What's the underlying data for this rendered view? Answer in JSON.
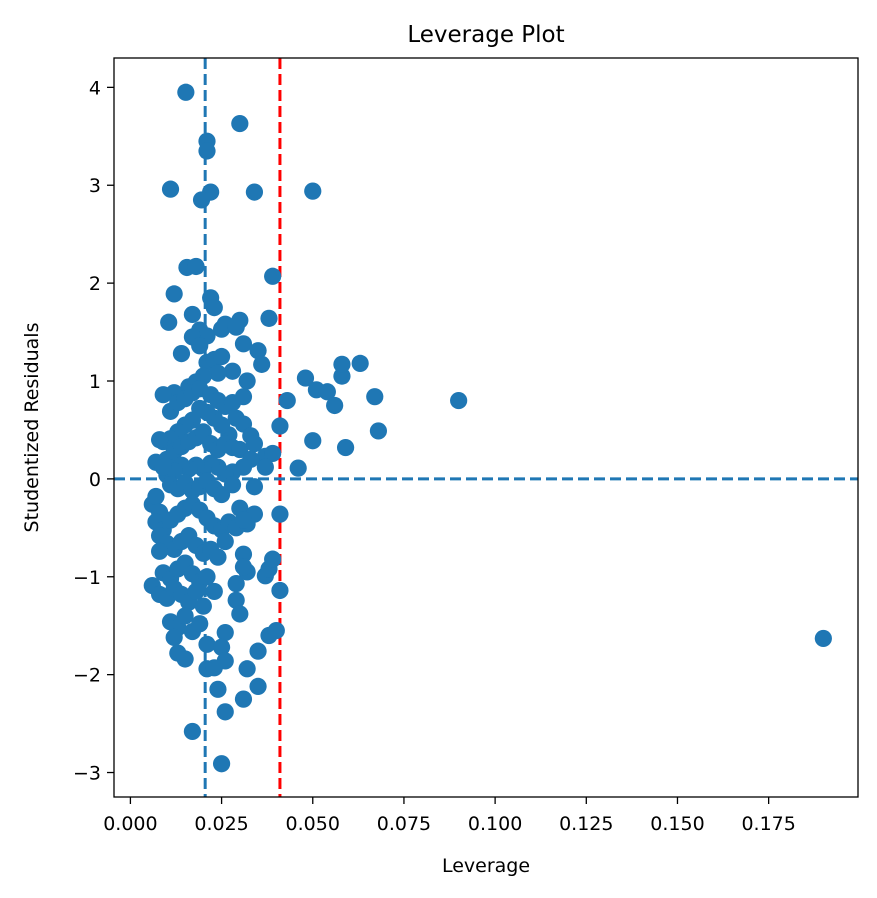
{
  "chart_data": {
    "type": "scatter",
    "title": "Leverage Plot",
    "xlabel": "Leverage",
    "ylabel": "Studentized Residuals",
    "xlim": [
      -0.0045,
      0.1995
    ],
    "ylim": [
      -3.25,
      4.3
    ],
    "xticks": [
      0.0,
      0.025,
      0.05,
      0.075,
      0.1,
      0.125,
      0.15,
      0.175
    ],
    "xtick_labels": [
      "0.000",
      "0.025",
      "0.050",
      "0.075",
      "0.100",
      "0.125",
      "0.150",
      "0.175"
    ],
    "yticks": [
      -3,
      -2,
      -1,
      0,
      1,
      2,
      3,
      4
    ],
    "ytick_labels": [
      "−3",
      "−2",
      "−1",
      "0",
      "1",
      "2",
      "3",
      "4"
    ],
    "point_color": "#1f77b4",
    "reference_lines": [
      {
        "orientation": "vertical",
        "value": 0.0205,
        "color": "#1f77b4",
        "style": "dashed"
      },
      {
        "orientation": "vertical",
        "value": 0.041,
        "color": "#ff0000",
        "style": "dashed"
      },
      {
        "orientation": "horizontal",
        "value": 0,
        "color": "#1f77b4",
        "style": "dashed"
      }
    ],
    "points": [
      [
        0.0152,
        3.95
      ],
      [
        0.03,
        3.63
      ],
      [
        0.021,
        3.45
      ],
      [
        0.021,
        3.35
      ],
      [
        0.011,
        2.96
      ],
      [
        0.022,
        2.93
      ],
      [
        0.034,
        2.93
      ],
      [
        0.05,
        2.94
      ],
      [
        0.0195,
        2.85
      ],
      [
        0.0155,
        2.16
      ],
      [
        0.018,
        2.17
      ],
      [
        0.039,
        2.07
      ],
      [
        0.022,
        1.85
      ],
      [
        0.023,
        1.75
      ],
      [
        0.012,
        1.89
      ],
      [
        0.0105,
        1.6
      ],
      [
        0.017,
        1.68
      ],
      [
        0.03,
        1.62
      ],
      [
        0.038,
        1.64
      ],
      [
        0.019,
        1.52
      ],
      [
        0.021,
        1.46
      ],
      [
        0.025,
        1.53
      ],
      [
        0.026,
        1.58
      ],
      [
        0.029,
        1.55
      ],
      [
        0.031,
        1.38
      ],
      [
        0.035,
        1.31
      ],
      [
        0.036,
        1.17
      ],
      [
        0.014,
        1.28
      ],
      [
        0.017,
        1.45
      ],
      [
        0.019,
        1.36
      ],
      [
        0.021,
        1.19
      ],
      [
        0.023,
        1.22
      ],
      [
        0.025,
        1.25
      ],
      [
        0.028,
        1.1
      ],
      [
        0.032,
        1.0
      ],
      [
        0.024,
        1.08
      ],
      [
        0.02,
        1.05
      ],
      [
        0.016,
        0.94
      ],
      [
        0.018,
        0.99
      ],
      [
        0.012,
        0.88
      ],
      [
        0.009,
        0.86
      ],
      [
        0.011,
        0.69
      ],
      [
        0.013,
        0.78
      ],
      [
        0.015,
        0.82
      ],
      [
        0.017,
        0.88
      ],
      [
        0.019,
        0.92
      ],
      [
        0.022,
        0.86
      ],
      [
        0.024,
        0.8
      ],
      [
        0.026,
        0.74
      ],
      [
        0.028,
        0.78
      ],
      [
        0.031,
        0.84
      ],
      [
        0.029,
        0.62
      ],
      [
        0.031,
        0.56
      ],
      [
        0.033,
        0.44
      ],
      [
        0.027,
        0.45
      ],
      [
        0.025,
        0.55
      ],
      [
        0.023,
        0.62
      ],
      [
        0.021,
        0.68
      ],
      [
        0.019,
        0.72
      ],
      [
        0.017,
        0.6
      ],
      [
        0.015,
        0.55
      ],
      [
        0.013,
        0.48
      ],
      [
        0.011,
        0.41
      ],
      [
        0.009,
        0.38
      ],
      [
        0.008,
        0.4
      ],
      [
        0.01,
        0.2
      ],
      [
        0.012,
        0.28
      ],
      [
        0.014,
        0.33
      ],
      [
        0.016,
        0.38
      ],
      [
        0.018,
        0.42
      ],
      [
        0.02,
        0.48
      ],
      [
        0.022,
        0.36
      ],
      [
        0.024,
        0.3
      ],
      [
        0.026,
        0.36
      ],
      [
        0.028,
        0.32
      ],
      [
        0.03,
        0.3
      ],
      [
        0.034,
        0.36
      ],
      [
        0.037,
        0.23
      ],
      [
        0.039,
        0.26
      ],
      [
        0.041,
        0.54
      ],
      [
        0.043,
        0.8
      ],
      [
        0.048,
        1.03
      ],
      [
        0.051,
        0.91
      ],
      [
        0.054,
        0.89
      ],
      [
        0.056,
        0.75
      ],
      [
        0.058,
        1.05
      ],
      [
        0.058,
        1.17
      ],
      [
        0.063,
        1.18
      ],
      [
        0.067,
        0.84
      ],
      [
        0.068,
        0.49
      ],
      [
        0.059,
        0.32
      ],
      [
        0.05,
        0.39
      ],
      [
        0.046,
        0.11
      ],
      [
        0.09,
        0.8
      ],
      [
        0.037,
        0.12
      ],
      [
        0.033,
        0.2
      ],
      [
        0.031,
        0.12
      ],
      [
        0.028,
        0.07
      ],
      [
        0.026,
        0.05
      ],
      [
        0.024,
        0.12
      ],
      [
        0.022,
        0.16
      ],
      [
        0.02,
        0.1
      ],
      [
        0.018,
        0.14
      ],
      [
        0.016,
        0.1
      ],
      [
        0.014,
        0.14
      ],
      [
        0.012,
        0.08
      ],
      [
        0.01,
        0.04
      ],
      [
        0.007,
        0.17
      ],
      [
        0.009,
        0.12
      ],
      [
        0.011,
        -0.06
      ],
      [
        0.013,
        -0.1
      ],
      [
        0.015,
        -0.04
      ],
      [
        0.017,
        -0.12
      ],
      [
        0.019,
        -0.08
      ],
      [
        0.021,
        -0.02
      ],
      [
        0.023,
        -0.1
      ],
      [
        0.025,
        -0.16
      ],
      [
        0.028,
        -0.06
      ],
      [
        0.03,
        -0.3
      ],
      [
        0.032,
        -0.46
      ],
      [
        0.034,
        -0.36
      ],
      [
        0.034,
        -0.08
      ],
      [
        0.041,
        -0.36
      ],
      [
        0.006,
        -0.26
      ],
      [
        0.007,
        -0.18
      ],
      [
        0.008,
        -0.34
      ],
      [
        0.007,
        -0.44
      ],
      [
        0.009,
        -0.52
      ],
      [
        0.011,
        -0.42
      ],
      [
        0.013,
        -0.36
      ],
      [
        0.015,
        -0.3
      ],
      [
        0.017,
        -0.26
      ],
      [
        0.019,
        -0.32
      ],
      [
        0.021,
        -0.4
      ],
      [
        0.023,
        -0.48
      ],
      [
        0.025,
        -0.52
      ],
      [
        0.027,
        -0.44
      ],
      [
        0.029,
        -0.5
      ],
      [
        0.031,
        -0.42
      ],
      [
        0.008,
        -0.58
      ],
      [
        0.01,
        -0.66
      ],
      [
        0.012,
        -0.72
      ],
      [
        0.014,
        -0.64
      ],
      [
        0.016,
        -0.58
      ],
      [
        0.018,
        -0.68
      ],
      [
        0.02,
        -0.76
      ],
      [
        0.022,
        -0.72
      ],
      [
        0.024,
        -0.8
      ],
      [
        0.026,
        -0.64
      ],
      [
        0.031,
        -0.77
      ],
      [
        0.032,
        -0.95
      ],
      [
        0.029,
        -1.07
      ],
      [
        0.031,
        -0.9
      ],
      [
        0.037,
        -0.99
      ],
      [
        0.038,
        -0.92
      ],
      [
        0.039,
        -0.82
      ],
      [
        0.041,
        -1.14
      ],
      [
        0.008,
        -0.74
      ],
      [
        0.009,
        -0.96
      ],
      [
        0.011,
        -1.02
      ],
      [
        0.013,
        -0.92
      ],
      [
        0.015,
        -0.86
      ],
      [
        0.017,
        -0.97
      ],
      [
        0.019,
        -1.05
      ],
      [
        0.021,
        -1.0
      ],
      [
        0.006,
        -1.09
      ],
      [
        0.008,
        -1.18
      ],
      [
        0.01,
        -1.22
      ],
      [
        0.012,
        -1.12
      ],
      [
        0.014,
        -1.18
      ],
      [
        0.016,
        -1.26
      ],
      [
        0.018,
        -1.15
      ],
      [
        0.02,
        -1.3
      ],
      [
        0.023,
        -1.15
      ],
      [
        0.029,
        -1.24
      ],
      [
        0.03,
        -1.38
      ],
      [
        0.011,
        -1.46
      ],
      [
        0.013,
        -1.52
      ],
      [
        0.015,
        -1.4
      ],
      [
        0.017,
        -1.56
      ],
      [
        0.019,
        -1.48
      ],
      [
        0.012,
        -1.62
      ],
      [
        0.013,
        -1.78
      ],
      [
        0.015,
        -1.84
      ],
      [
        0.021,
        -1.69
      ],
      [
        0.026,
        -1.57
      ],
      [
        0.038,
        -1.6
      ],
      [
        0.04,
        -1.55
      ],
      [
        0.035,
        -1.76
      ],
      [
        0.025,
        -1.72
      ],
      [
        0.026,
        -1.86
      ],
      [
        0.021,
        -1.94
      ],
      [
        0.023,
        -1.93
      ],
      [
        0.032,
        -1.94
      ],
      [
        0.024,
        -2.15
      ],
      [
        0.035,
        -2.12
      ],
      [
        0.031,
        -2.25
      ],
      [
        0.026,
        -2.38
      ],
      [
        0.017,
        -2.58
      ],
      [
        0.025,
        -2.91
      ],
      [
        0.19,
        -1.63
      ]
    ]
  }
}
